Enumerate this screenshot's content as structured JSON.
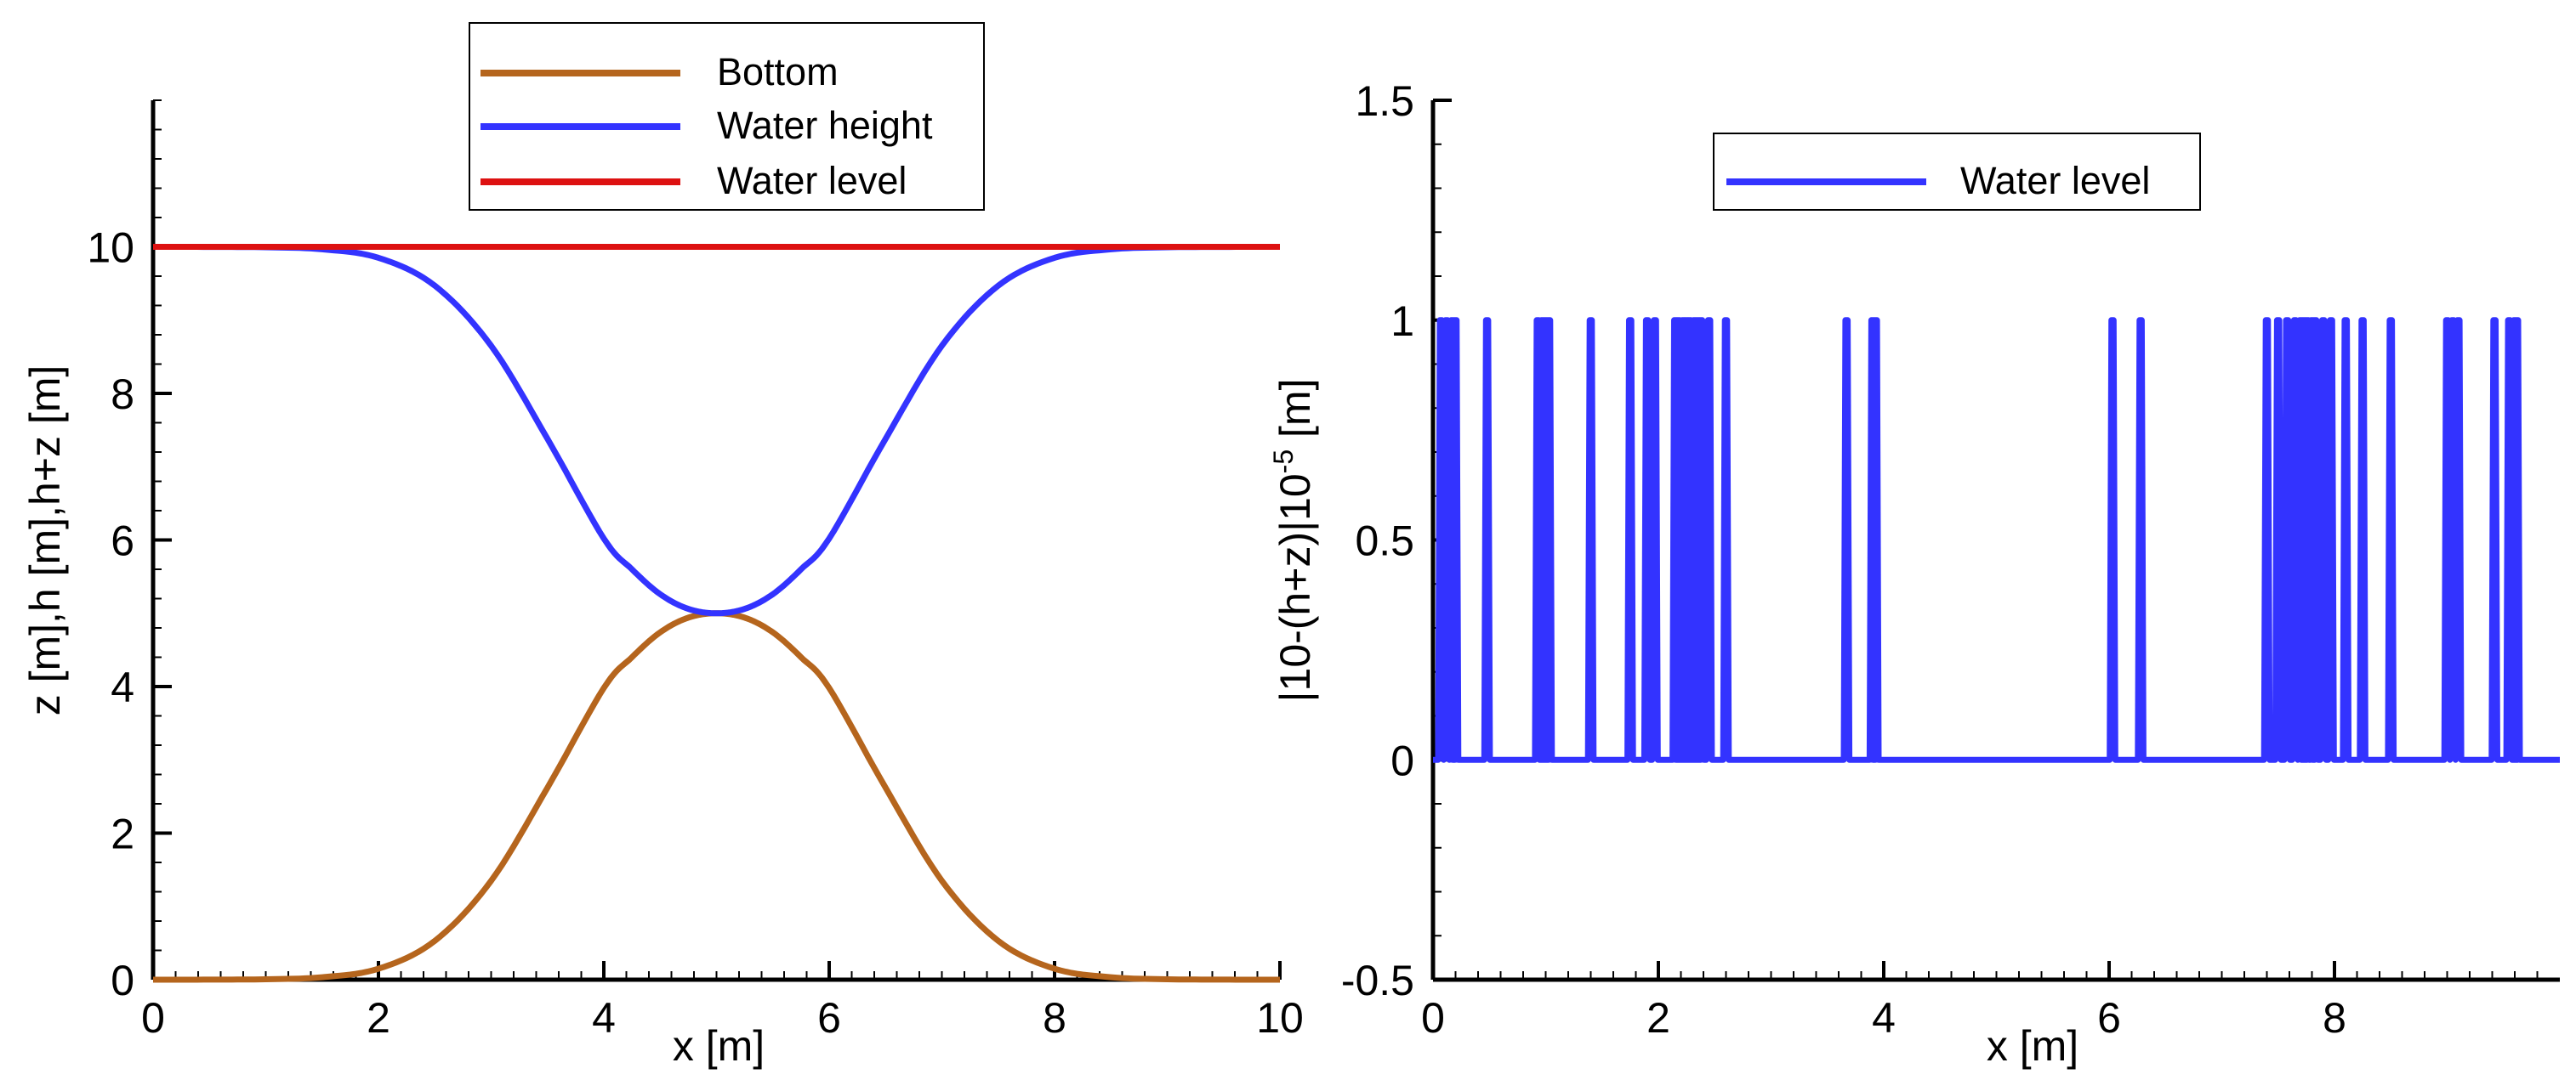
{
  "chart_data": [
    {
      "type": "line",
      "xlabel": "x [m]",
      "ylabel": "z [m],h [m],h+z [m]",
      "xlim": [
        0,
        10
      ],
      "ylim": [
        0,
        12
      ],
      "xticks": [
        "0",
        "2",
        "4",
        "6",
        "8",
        "10"
      ],
      "yticks": [
        "0",
        "2",
        "4",
        "6",
        "8",
        "10"
      ],
      "legend_position": "top-center",
      "series": [
        {
          "name": "Bottom",
          "color": "#b5651d",
          "x": [
            0,
            0.5,
            1,
            1.5,
            2,
            2.5,
            3,
            3.5,
            4,
            4.25,
            4.5,
            4.75,
            5,
            5.25,
            5.5,
            5.75,
            6,
            6.5,
            7,
            7.5,
            8,
            8.5,
            9,
            9.5,
            10
          ],
          "y": [
            0.0,
            0.001,
            0.006,
            0.034,
            0.15,
            0.53,
            1.35,
            2.62,
            3.98,
            4.4,
            4.74,
            4.94,
            5.0,
            4.94,
            4.74,
            4.4,
            3.98,
            2.62,
            1.35,
            0.53,
            0.15,
            0.034,
            0.006,
            0.001,
            0.0
          ]
        },
        {
          "name": "Water height",
          "color": "#3333ff",
          "x": [
            0,
            0.5,
            1,
            1.5,
            2,
            2.5,
            3,
            3.5,
            4,
            4.25,
            4.5,
            4.75,
            5,
            5.25,
            5.5,
            5.75,
            6,
            6.5,
            7,
            7.5,
            8,
            8.5,
            9,
            9.5,
            10
          ],
          "y": [
            10.0,
            9.999,
            9.994,
            9.966,
            9.85,
            9.47,
            8.65,
            7.38,
            6.02,
            5.6,
            5.26,
            5.06,
            5.0,
            5.06,
            5.26,
            5.6,
            6.02,
            7.38,
            8.65,
            9.47,
            9.85,
            9.966,
            9.994,
            9.999,
            10.0
          ]
        },
        {
          "name": "Water level",
          "color": "#dd1111",
          "x": [
            0,
            10
          ],
          "y": [
            10,
            10
          ]
        }
      ]
    },
    {
      "type": "line",
      "xlabel": "x [m]",
      "ylabel_main": "|10-(h+z)|10",
      "ylabel_exponent": "-5",
      "ylabel_unit": " [m]",
      "xlim": [
        0,
        10
      ],
      "ylim": [
        -0.5,
        1.5
      ],
      "xticks": [
        "0",
        "2",
        "4",
        "6",
        "8"
      ],
      "yticks": [
        "-0.5",
        "0",
        "0.5",
        "1",
        "1.5"
      ],
      "legend_position": "top-center",
      "series": [
        {
          "name": "Water level",
          "color": "#3333ff",
          "spikes": [
            0.07,
            0.12,
            0.17,
            0.2,
            0.48,
            0.93,
            0.97,
            1.0,
            1.03,
            1.4,
            1.75,
            1.9,
            1.97,
            2.15,
            2.18,
            2.22,
            2.25,
            2.28,
            2.32,
            2.35,
            2.38,
            2.45,
            2.6,
            3.67,
            3.9,
            3.93,
            6.03,
            6.28,
            7.4,
            7.5,
            7.58,
            7.65,
            7.7,
            7.73,
            7.76,
            7.8,
            7.83,
            7.9,
            7.97,
            8.1,
            8.25,
            8.5,
            9.0,
            9.05,
            9.1,
            9.42,
            9.55,
            9.6,
            9.62
          ]
        }
      ]
    }
  ]
}
